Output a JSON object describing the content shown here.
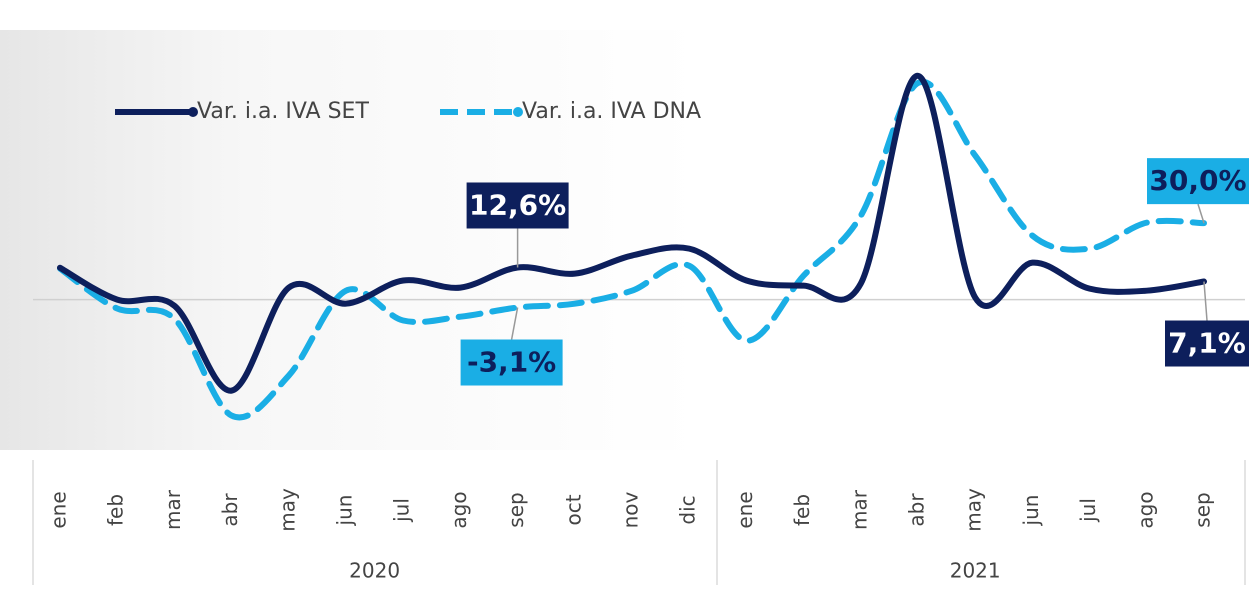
{
  "chart_data": {
    "type": "line",
    "categories": [
      "ene",
      "feb",
      "mar",
      "abr",
      "may",
      "jun",
      "jul",
      "ago",
      "sep",
      "oct",
      "nov",
      "dic",
      "ene",
      "feb",
      "mar",
      "abr",
      "may",
      "jun",
      "jul",
      "ago",
      "sep"
    ],
    "years": [
      "2020",
      "2021"
    ],
    "series": [
      {
        "name": "Var. i.a. IVA SET",
        "color": "#0d1f5c",
        "dash": false,
        "values": [
          12.5,
          0,
          -2.4,
          -35.7,
          4.7,
          -1.6,
          7.5,
          4.7,
          12.6,
          10.2,
          17.3,
          20,
          7.5,
          5.5,
          6.3,
          87.8,
          0.8,
          14.5,
          4.3,
          3.5,
          7.1
        ],
        "value_labels": [
          null,
          null,
          null,
          null,
          null,
          null,
          null,
          null,
          "12,6%",
          null,
          null,
          null,
          null,
          null,
          null,
          null,
          null,
          null,
          null,
          null,
          "7,1%"
        ]
      },
      {
        "name": "Var. i.a. IVA DNA",
        "color": "#1aaee5",
        "dash": true,
        "values": [
          12.2,
          -3.5,
          -7.5,
          -45.5,
          -29.8,
          3.5,
          -8.2,
          -6.7,
          -3.1,
          -1.6,
          3.5,
          13.3,
          -16.1,
          9.4,
          32.9,
          85,
          56.5,
          25.1,
          20,
          30.2,
          30
        ],
        "value_labels": [
          null,
          null,
          null,
          null,
          null,
          null,
          null,
          null,
          "-3,1%",
          null,
          null,
          null,
          null,
          null,
          null,
          null,
          null,
          null,
          null,
          null,
          "30,0%"
        ]
      }
    ],
    "ylim": [
      -59,
      94
    ],
    "legend": "top-left"
  }
}
